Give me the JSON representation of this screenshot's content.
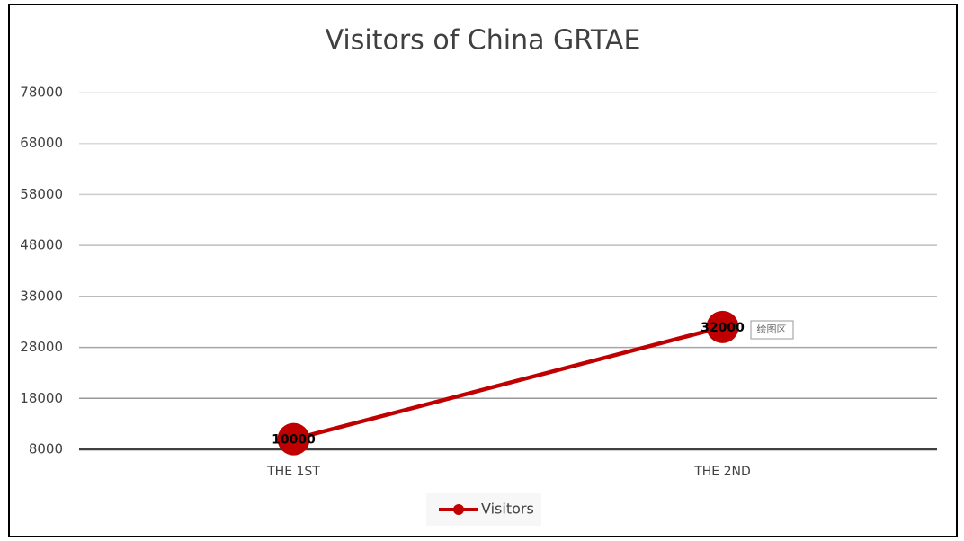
{
  "chart_data": {
    "type": "line",
    "title": "Visitors of China GRTAE",
    "categories": [
      "THE 1ST",
      "THE 2ND"
    ],
    "series": [
      {
        "name": "Visitors",
        "color": "#c00000",
        "values": [
          10000,
          32000
        ]
      }
    ],
    "ylim": [
      8000,
      78000
    ],
    "yticks": [
      8000,
      18000,
      28000,
      38000,
      48000,
      58000,
      68000,
      78000
    ],
    "grid": true,
    "legend": "bottom",
    "annotation": "绘图区"
  }
}
